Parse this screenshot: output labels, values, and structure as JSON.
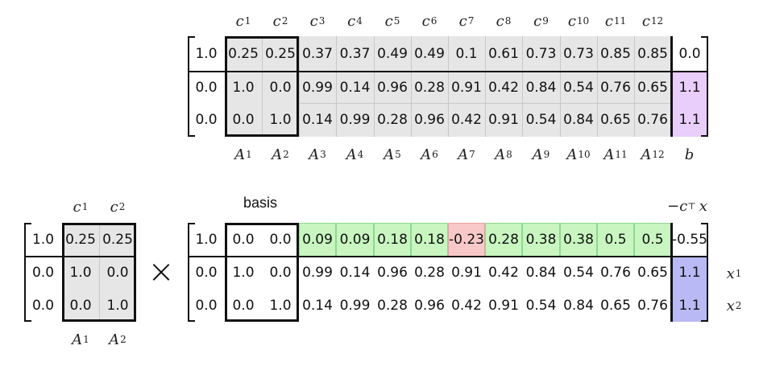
{
  "top": {
    "col_labels": [
      "c",
      "c",
      "c",
      "c",
      "c",
      "c",
      "c",
      "c",
      "c",
      "c",
      "c",
      "c"
    ],
    "col_subs": [
      "1",
      "2",
      "3",
      "4",
      "5",
      "6",
      "7",
      "8",
      "9",
      "10",
      "11",
      "12"
    ],
    "rows": [
      [
        "1.0",
        "0.25",
        "0.25",
        "0.37",
        "0.37",
        "0.49",
        "0.49",
        "0.1",
        "0.61",
        "0.73",
        "0.73",
        "0.85",
        "0.85",
        "0.0"
      ],
      [
        "0.0",
        "1.0",
        "0.0",
        "0.99",
        "0.14",
        "0.96",
        "0.28",
        "0.91",
        "0.42",
        "0.84",
        "0.54",
        "0.76",
        "0.65",
        "1.1"
      ],
      [
        "0.0",
        "0.0",
        "1.0",
        "0.14",
        "0.99",
        "0.28",
        "0.96",
        "0.42",
        "0.91",
        "0.54",
        "0.84",
        "0.65",
        "0.76",
        "1.1"
      ]
    ],
    "bottom_labels": [
      "A",
      "A",
      "A",
      "A",
      "A",
      "A",
      "A",
      "A",
      "A",
      "A",
      "A",
      "A",
      "b"
    ],
    "bottom_subs": [
      "1",
      "2",
      "3",
      "4",
      "5",
      "6",
      "7",
      "8",
      "9",
      "10",
      "11",
      "12",
      ""
    ]
  },
  "left_matrix": {
    "col_labels": [
      "c",
      "c"
    ],
    "col_subs": [
      "1",
      "2"
    ],
    "rows": [
      [
        "1.0",
        "0.25",
        "0.25"
      ],
      [
        "0.0",
        "1.0",
        "0.0"
      ],
      [
        "0.0",
        "0.0",
        "1.0"
      ]
    ],
    "bottom_labels": [
      "A",
      "A"
    ],
    "bottom_subs": [
      "1",
      "2"
    ]
  },
  "times_symbol": "×",
  "tableau": {
    "basis_label": "basis",
    "objective_label": {
      "minus": "−",
      "c": "c",
      "sup": "⊤",
      "x": "x"
    },
    "rows": [
      [
        "1.0",
        "0.0",
        "0.0",
        "0.09",
        "0.09",
        "0.18",
        "0.18",
        "-0.23",
        "0.28",
        "0.38",
        "0.38",
        "0.5",
        "0.5",
        "-0.55"
      ],
      [
        "0.0",
        "1.0",
        "0.0",
        "0.99",
        "0.14",
        "0.96",
        "0.28",
        "0.91",
        "0.42",
        "0.84",
        "0.54",
        "0.76",
        "0.65",
        "1.1"
      ],
      [
        "0.0",
        "0.0",
        "1.0",
        "0.14",
        "0.99",
        "0.28",
        "0.96",
        "0.42",
        "0.91",
        "0.54",
        "0.84",
        "0.65",
        "0.76",
        "1.1"
      ]
    ],
    "row_labels": [
      "x",
      "x"
    ],
    "row_label_subs": [
      "1",
      "2"
    ]
  },
  "colors": {
    "gray_fill": "#e6e6e6",
    "purple_fill": "#e9cdfa",
    "blue_fill": "#b9b9f5",
    "green_fill": "#c8f5c0",
    "red_fill": "#f8c8c8"
  }
}
